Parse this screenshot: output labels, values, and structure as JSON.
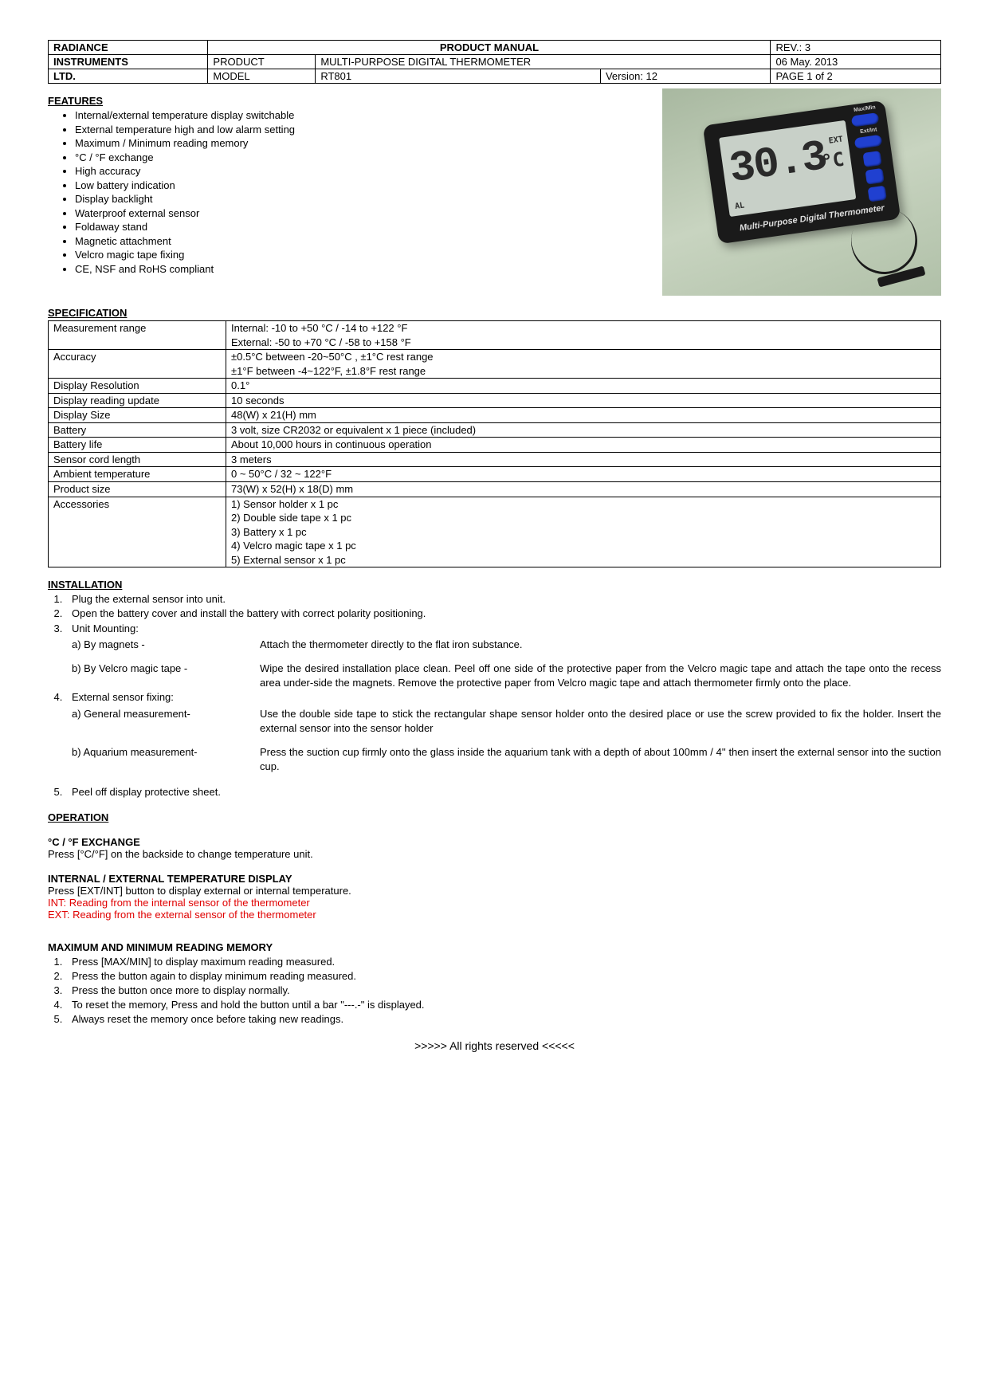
{
  "header": {
    "company1": "RADIANCE",
    "company2": "INSTRUMENTS",
    "company3": "LTD.",
    "manual_title": "PRODUCT MANUAL",
    "rev": "REV.: 3",
    "product_label": "PRODUCT",
    "product_value": "MULTI-PURPOSE DIGITAL THERMOMETER",
    "date": "06 May. 2013",
    "model_label": "MODEL",
    "model_value": "RT801",
    "version": "Version: 12",
    "page": "PAGE 1 of 2"
  },
  "features_title": "FEATURES",
  "features": [
    "Internal/external temperature display switchable",
    "External temperature high and low alarm setting",
    "Maximum / Minimum reading memory",
    "°C / °F exchange",
    "High accuracy",
    "Low battery indication",
    "Display backlight",
    "Waterproof external sensor",
    "Foldaway stand",
    "Magnetic attachment",
    "Velcro magic tape fixing",
    "CE, NSF and RoHS compliant"
  ],
  "image": {
    "lcd_temp": "30.3",
    "lcd_ext": "EXT",
    "lcd_unit": "°C",
    "lcd_al": "AL",
    "device_label": "Multi-Purpose Digital Thermometer",
    "btn1": "Max/Min",
    "btn2": "Ext/Int"
  },
  "spec_title": "SPECIFICATION",
  "spec": [
    {
      "k": "Measurement range",
      "v": "Internal: -10 to +50 °C / -14 to +122 °F\nExternal: -50 to +70 °C / -58 to +158 °F"
    },
    {
      "k": "Accuracy",
      "v": "±0.5°C between -20~50°C , ±1°C rest range\n±1°F between -4~122°F, ±1.8°F rest range"
    },
    {
      "k": "Display Resolution",
      "v": "0.1°"
    },
    {
      "k": "Display reading update",
      "v": "10 seconds"
    },
    {
      "k": "Display Size",
      "v": "48(W) x 21(H) mm"
    },
    {
      "k": "Battery",
      "v": "3 volt, size CR2032 or equivalent x 1 piece (included)"
    },
    {
      "k": "Battery life",
      "v": "About 10,000 hours in continuous operation"
    },
    {
      "k": "Sensor cord length",
      "v": "3 meters"
    },
    {
      "k": "Ambient temperature",
      "v": "0 ~ 50°C / 32 ~ 122°F"
    },
    {
      "k": "Product size",
      "v": "73(W) x 52(H) x 18(D) mm"
    },
    {
      "k": "Accessories",
      "v": "1)  Sensor holder x 1 pc\n2)  Double side tape x 1 pc\n3)  Battery x 1 pc\n4)  Velcro magic tape x 1 pc\n5)  External sensor x 1 pc"
    }
  ],
  "install_title": "INSTALLATION",
  "install": {
    "step1": "Plug the external sensor into unit.",
    "step2": "Open the battery cover and install the battery with correct polarity positioning.",
    "step3": "Unit Mounting:",
    "s3a_l": "a) By magnets -",
    "s3a_d": "Attach the thermometer directly to the flat iron substance.",
    "s3b_l": "b) By Velcro magic tape -",
    "s3b_d": "Wipe the desired installation place clean. Peel off one side of the protective paper from the Velcro magic tape and attach the tape onto the recess area under-side the magnets. Remove the protective paper from Velcro magic tape and attach thermometer firmly onto the place.",
    "step4": "External sensor fixing:",
    "s4a_l": "a) General measurement-",
    "s4a_d": "Use the double side tape to stick the rectangular shape sensor holder onto the desired place or use the screw provided to fix the holder. Insert the external sensor into the sensor holder",
    "s4b_l": "b) Aquarium measurement-",
    "s4b_d": "Press the suction cup firmly onto the glass inside the aquarium tank with a depth of about 100mm / 4'' then insert the external sensor into the suction cup.",
    "step5": "Peel off display protective sheet."
  },
  "operation_title": "OPERATION",
  "cf_title": "°C / °F EXCHANGE",
  "cf_text": "Press [°C/°F] on the backside to change temperature unit.",
  "intext_title": "INTERNAL / EXTERNAL TEMPERATURE DISPLAY",
  "intext_text": "Press [EXT/INT] button to display external or internal temperature.",
  "intext_red1": "INT: Reading from the internal sensor of the thermometer",
  "intext_red2": "EXT: Reading from the external sensor of the thermometer",
  "maxmin_title": "MAXIMUM AND MINIMUM READING MEMORY",
  "maxmin": [
    "Press [MAX/MIN] to display maximum reading measured.",
    "Press the button again to display minimum reading measured.",
    "Press the button once more to display normally.",
    "To reset the memory, Press and hold the button until a bar \"---.-\" is displayed.",
    "Always reset the memory once before taking new readings."
  ],
  "footer": ">>>>> All rights reserved <<<<<"
}
